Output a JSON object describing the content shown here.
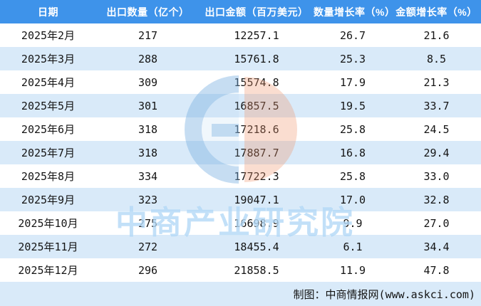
{
  "table": {
    "headers": [
      "日期",
      "出口数量（亿个）",
      "出口金额（百万美元）",
      "数量增长率（%）",
      "金额增长率（%）"
    ],
    "rows": [
      [
        "2025年2月",
        "217",
        "12257.1",
        "26.7",
        "21.6"
      ],
      [
        "2025年3月",
        "288",
        "15761.8",
        "25.3",
        "8.5"
      ],
      [
        "2025年4月",
        "309",
        "15574.8",
        "17.9",
        "21.3"
      ],
      [
        "2025年5月",
        "301",
        "16857.5",
        "19.5",
        "33.7"
      ],
      [
        "2025年6月",
        "318",
        "17218.6",
        "25.8",
        "24.5"
      ],
      [
        "2025年7月",
        "318",
        "17887.7",
        "16.8",
        "29.4"
      ],
      [
        "2025年8月",
        "334",
        "17722.3",
        "25.8",
        "33.0"
      ],
      [
        "2025年9月",
        "323",
        "19047.1",
        "17.0",
        "32.8"
      ],
      [
        "2025年10月",
        "275",
        "16698.9",
        "9.9",
        "27.0"
      ],
      [
        "2025年11月",
        "272",
        "18455.4",
        "6.1",
        "34.4"
      ],
      [
        "2025年12月",
        "296",
        "21858.5",
        "11.9",
        "47.8"
      ]
    ]
  },
  "footer": {
    "credit": "制图：中商情报网(www.askci.com)"
  },
  "watermark": {
    "text": "中商产业研究院"
  },
  "colors": {
    "header_bg": "#3e93ea",
    "stripe_bg": "#d9eaf9",
    "header_text": "#ffffff",
    "body_text": "#141414",
    "watermark_blue": "#90c6f2",
    "watermark_orange": "#f2a07d"
  },
  "chart_data": {
    "type": "table",
    "columns": [
      "日期",
      "出口数量（亿个）",
      "出口金额（百万美元）",
      "数量增长率（%）",
      "金额增长率（%）"
    ],
    "rows": [
      [
        "2025年2月",
        217,
        12257.1,
        26.7,
        21.6
      ],
      [
        "2025年3月",
        288,
        15761.8,
        25.3,
        8.5
      ],
      [
        "2025年4月",
        309,
        15574.8,
        17.9,
        21.3
      ],
      [
        "2025年5月",
        301,
        16857.5,
        19.5,
        33.7
      ],
      [
        "2025年6月",
        318,
        17218.6,
        25.8,
        24.5
      ],
      [
        "2025年7月",
        318,
        17887.7,
        16.8,
        29.4
      ],
      [
        "2025年8月",
        334,
        17722.3,
        25.8,
        33.0
      ],
      [
        "2025年9月",
        323,
        19047.1,
        17.0,
        32.8
      ],
      [
        "2025年10月",
        275,
        16698.9,
        9.9,
        27.0
      ],
      [
        "2025年11月",
        272,
        18455.4,
        6.1,
        34.4
      ],
      [
        "2025年12月",
        296,
        21858.5,
        11.9,
        47.8
      ]
    ],
    "source_note": "制图：中商情报网(www.askci.com)",
    "legend_position": "none",
    "grid": "row-stripes"
  }
}
